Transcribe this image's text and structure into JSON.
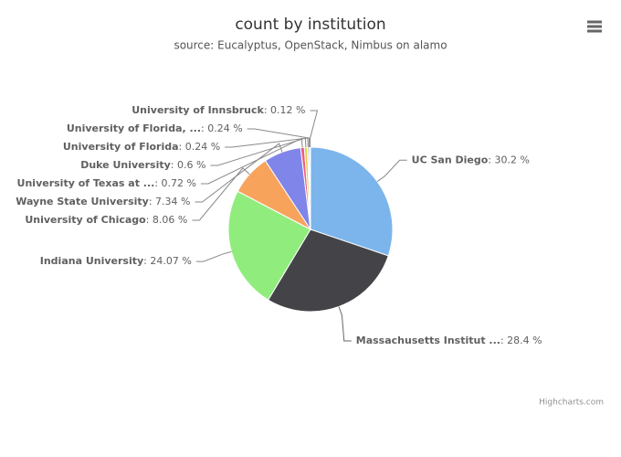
{
  "chart_data": {
    "type": "pie",
    "title": "count by institution",
    "subtitle": "source: Eucalyptus, OpenStack, Nimbus on alamo",
    "categories": [
      "UC San Diego",
      "Massachusetts Institut ...",
      "Indiana University",
      "University of Chicago",
      "Wayne State University",
      "University of Texas at ...",
      "Duke University",
      "University of Florida",
      "University of Florida, ...",
      "University of Innsbruck"
    ],
    "values": [
      30.2,
      28.4,
      24.07,
      8.06,
      7.34,
      0.72,
      0.6,
      0.24,
      0.24,
      0.12
    ],
    "value_labels": [
      ": 30.2 %",
      ": 28.4 %",
      ": 24.07 %",
      ": 8.06 %",
      ": 7.34 %",
      ": 0.72 %",
      ": 0.6 %",
      ": 0.24 %",
      ": 0.24 %",
      ": 0.12 %"
    ],
    "colors": [
      "#7cb5ec",
      "#434348",
      "#90ed7d",
      "#f7a35c",
      "#8085e9",
      "#f15c80",
      "#e4d354",
      "#2b908f",
      "#f45b5b",
      "#91e8e1"
    ],
    "credits": "Highcharts.com"
  }
}
